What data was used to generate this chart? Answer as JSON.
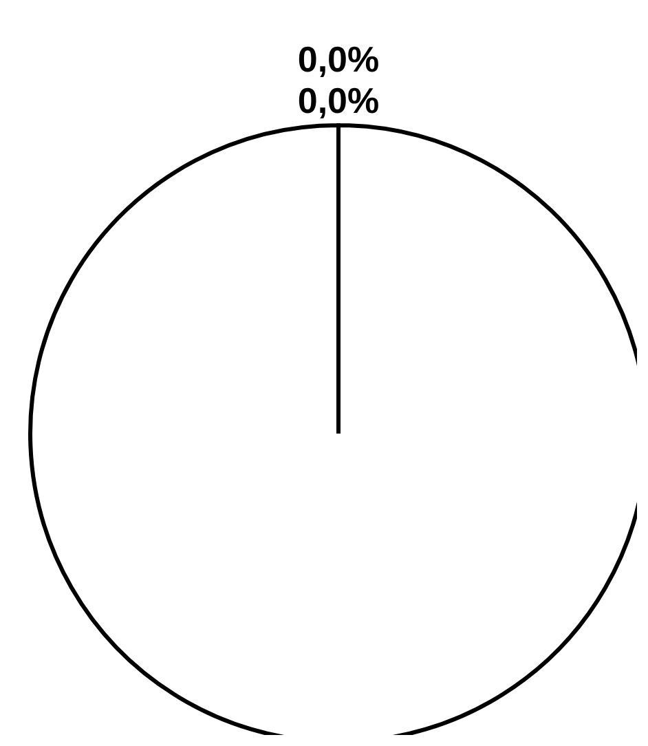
{
  "chart_data": {
    "type": "pie",
    "categories": [
      null,
      null,
      null
    ],
    "values": [
      100,
      0,
      0
    ],
    "colors": [
      "#ffffff",
      "#ffffff",
      "#ffffff"
    ],
    "value_labels": [
      null,
      "0,0%",
      "0,0%"
    ]
  }
}
